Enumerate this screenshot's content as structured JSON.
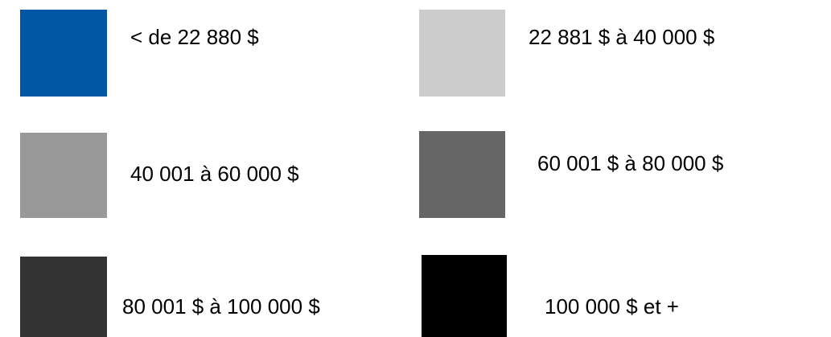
{
  "legend": {
    "items": [
      {
        "label": "< de 22 880 $",
        "color": "#0057a3"
      },
      {
        "label": "22 881 $ à 40 000 $",
        "color": "#cccccc"
      },
      {
        "label": "40 001 à 60 000 $",
        "color": "#999999"
      },
      {
        "label": "60 001 $ à 80 000 $",
        "color": "#666666"
      },
      {
        "label": "80 001 $ à 100 000 $",
        "color": "#333333"
      },
      {
        "label": "100 000 $ et +",
        "color": "#000000"
      }
    ]
  }
}
